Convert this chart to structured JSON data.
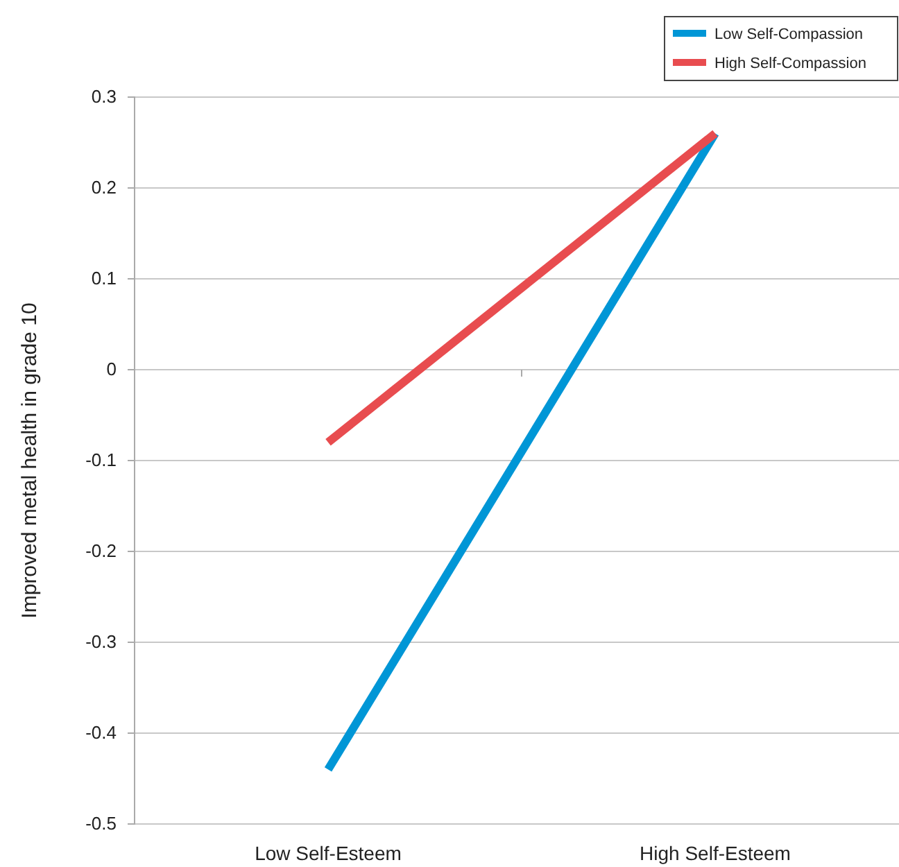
{
  "chart_data": {
    "type": "line",
    "ylabel": "Improved metal health in grade 10",
    "categories": [
      "Low Self-Esteem",
      "High Self-Esteem"
    ],
    "series": [
      {
        "name": "Low Self-Compassion",
        "color": "#0096d6",
        "values": [
          -0.44,
          0.26
        ]
      },
      {
        "name": "High Self-Compassion",
        "color": "#e84c4f",
        "values": [
          -0.08,
          0.26
        ]
      }
    ],
    "ylim": [
      -0.5,
      0.3
    ],
    "yticks": [
      -0.5,
      -0.4,
      -0.3,
      -0.2,
      -0.1,
      0,
      0.1,
      0.2,
      0.3
    ],
    "grid": "y",
    "legend": "top right",
    "marker": "none",
    "line_style": "solid"
  }
}
